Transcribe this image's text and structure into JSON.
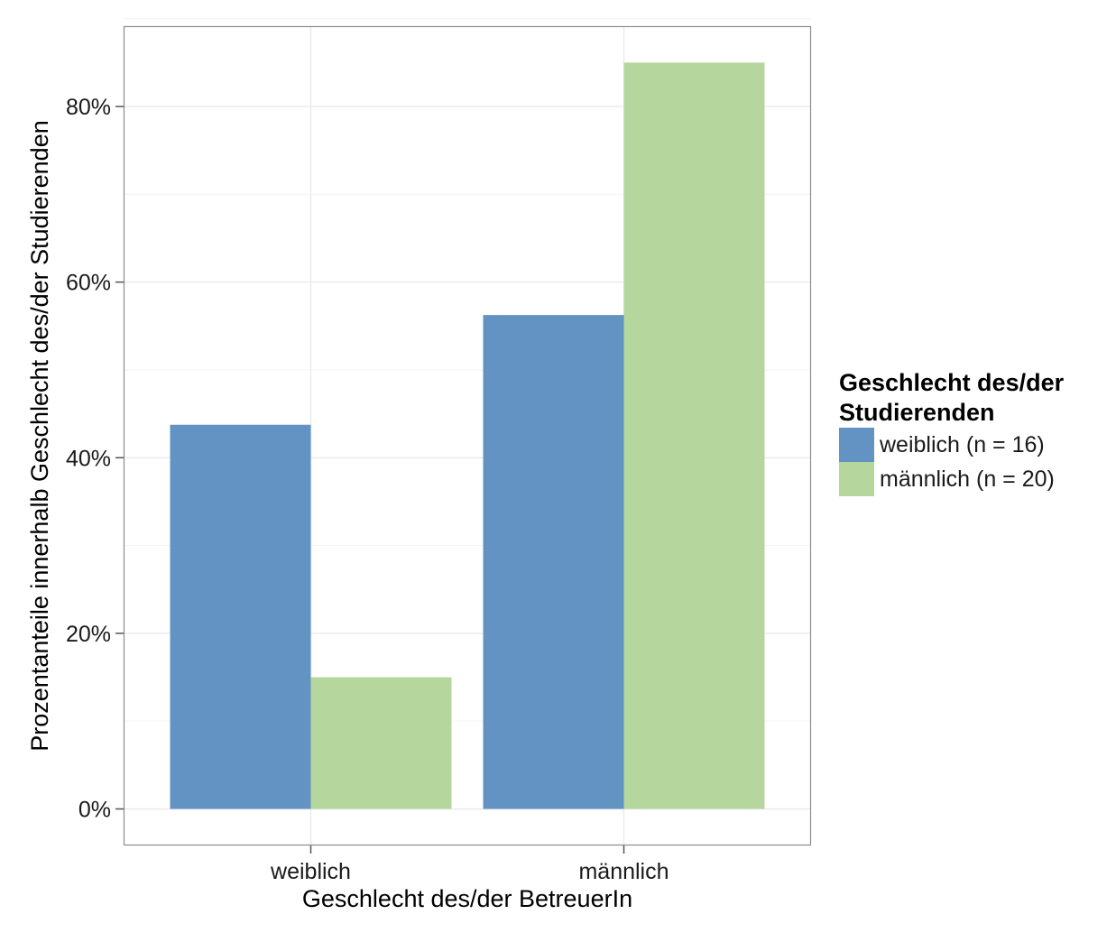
{
  "chart_data": {
    "type": "bar",
    "xlabel": "Geschlecht des/der BetreuerIn",
    "ylabel": "Prozentanteile innerhalb Geschlecht des/der Studierenden",
    "categories": [
      "weiblich",
      "männlich"
    ],
    "series": [
      {
        "name": "weiblich (n = 16)",
        "color": "#6293c3",
        "values": [
          43.75,
          56.25
        ]
      },
      {
        "name": "männlich (n = 20)",
        "color": "#b5d79d",
        "values": [
          15,
          85
        ]
      }
    ],
    "ylim": [
      0,
      90
    ],
    "yticks": [
      0,
      20,
      40,
      60,
      80
    ],
    "ytick_labels": [
      "0%",
      "20%",
      "40%",
      "60%",
      "80%"
    ],
    "grid": true,
    "legend": {
      "title": "Geschlecht des/der Studierenden",
      "title_line1": "Geschlecht des/der",
      "title_line2": "Studierenden",
      "placement": "right"
    }
  }
}
